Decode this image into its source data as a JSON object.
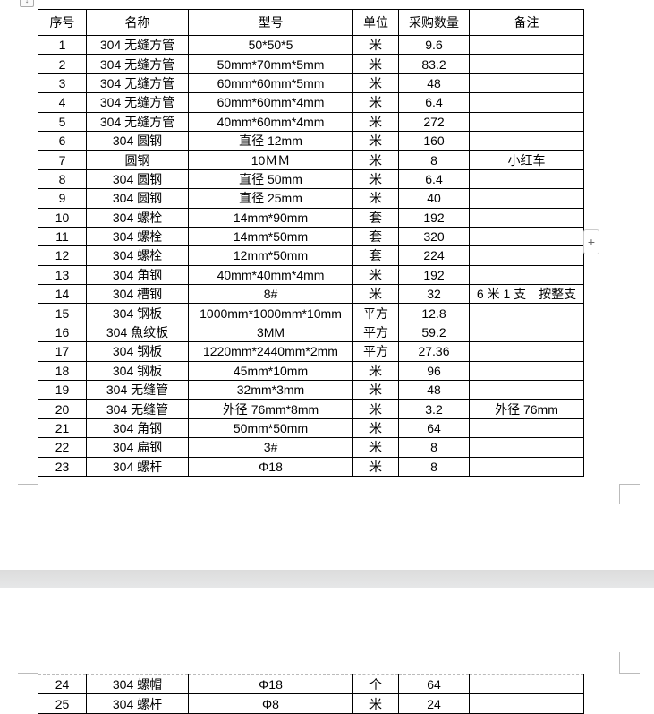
{
  "table": {
    "headers": [
      "序号",
      "名称",
      "型号",
      "单位",
      "采购数量",
      "备注"
    ],
    "rows_page1": [
      [
        "1",
        "304 无缝方管",
        "50*50*5",
        "米",
        "9.6",
        ""
      ],
      [
        "2",
        "304 无缝方管",
        "50mm*70mm*5mm",
        "米",
        "83.2",
        ""
      ],
      [
        "3",
        "304 无缝方管",
        "60mm*60mm*5mm",
        "米",
        "48",
        ""
      ],
      [
        "4",
        "304 无缝方管",
        "60mm*60mm*4mm",
        "米",
        "6.4",
        ""
      ],
      [
        "5",
        "304 无缝方管",
        "40mm*60mm*4mm",
        "米",
        "272",
        ""
      ],
      [
        "6",
        "304 圆钢",
        "直径 12mm",
        "米",
        "160",
        ""
      ],
      [
        "7",
        "圆钢",
        "10ＭＭ",
        "米",
        "8",
        "小红车"
      ],
      [
        "8",
        "304 圆钢",
        "直径 50mm",
        "米",
        "6.4",
        ""
      ],
      [
        "9",
        "304 圆钢",
        "直径 25mm",
        "米",
        "40",
        ""
      ],
      [
        "10",
        "304 螺栓",
        "14mm*90mm",
        "套",
        "192",
        ""
      ],
      [
        "11",
        "304 螺栓",
        "14mm*50mm",
        "套",
        "320",
        ""
      ],
      [
        "12",
        "304 螺栓",
        "12mm*50mm",
        "套",
        "224",
        ""
      ],
      [
        "13",
        "304 角钢",
        "40mm*40mm*4mm",
        "米",
        "192",
        ""
      ],
      [
        "14",
        "304 槽钢",
        "8#",
        "米",
        "32",
        "6 米 1 支　按整支"
      ],
      [
        "15",
        "304 钢板",
        "1000mm*1000mm*10mm",
        "平方",
        "12.8",
        ""
      ],
      [
        "16",
        "304 魚纹板",
        "3MM",
        "平方",
        "59.2",
        ""
      ],
      [
        "17",
        "304 钢板",
        "1220mm*2440mm*2mm",
        "平方",
        "27.36",
        ""
      ],
      [
        "18",
        "304 钢板",
        "45mm*10mm",
        "米",
        "96",
        ""
      ],
      [
        "19",
        "304 无缝管",
        "32mm*3mm",
        "米",
        "48",
        ""
      ],
      [
        "20",
        "304 无缝管",
        "外径 76mm*8mm",
        "米",
        "3.2",
        "外径 76mm"
      ],
      [
        "21",
        "304 角钢",
        "50mm*50mm",
        "米",
        "64",
        ""
      ],
      [
        "22",
        "304 扁钢",
        "3#",
        "米",
        "8",
        ""
      ],
      [
        "23",
        "304 螺杆",
        "Φ18",
        "米",
        "8",
        ""
      ]
    ],
    "rows_page2": [
      [
        "24",
        "304 螺帽",
        "Φ18",
        "个",
        "64",
        ""
      ],
      [
        "25",
        "304 螺杆",
        "Φ8",
        "米",
        "24",
        ""
      ]
    ]
  },
  "icons": {
    "table_anchor": "move-anchor-icon",
    "add_column": "plus-icon"
  },
  "plus_label": "+"
}
